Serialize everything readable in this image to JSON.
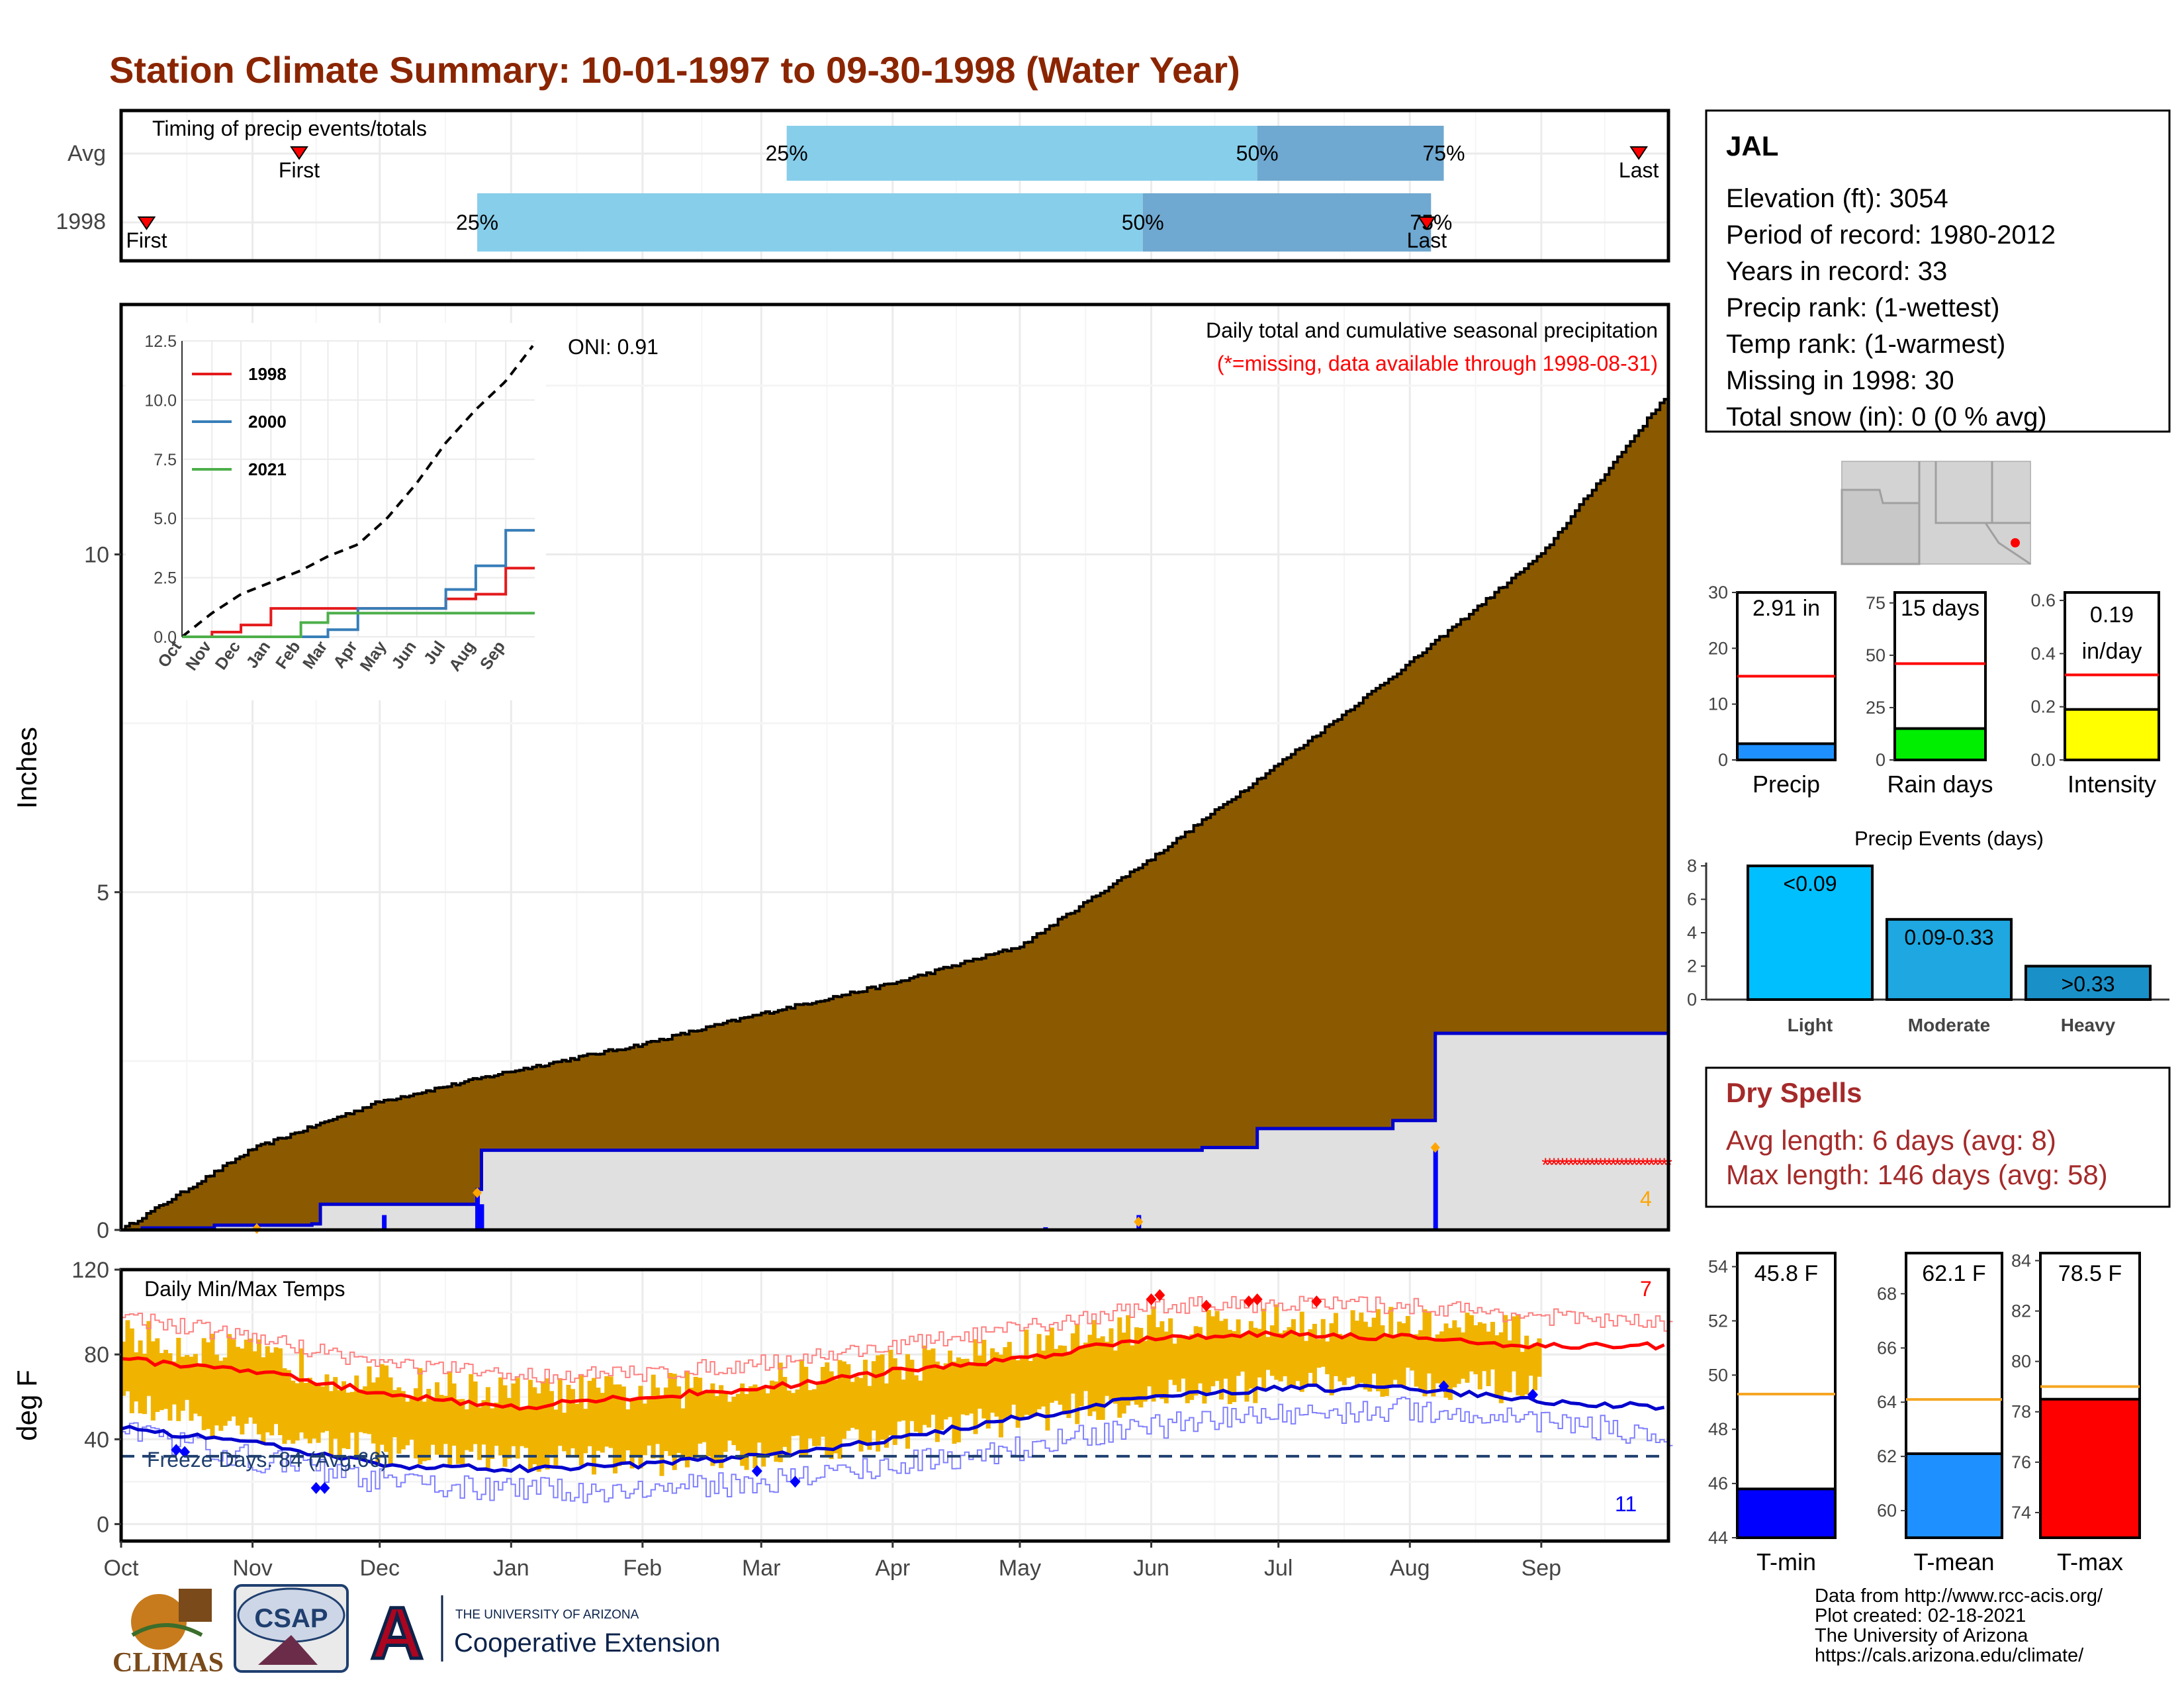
{
  "title": "Station Climate Summary: 10-01-1997 to 09-30-1998 (Water Year)",
  "colors": {
    "title": "#8b2500",
    "cumulative_fill": "#8b5a00",
    "avg_fill": "#e0e0e0",
    "avg_line": "#0000cd",
    "timing_light": "#87ceeb",
    "timing_dark": "#6fa8d0",
    "temp_bar": "#f0b400",
    "tmax_line": "#ff0000",
    "tmin_line": "#0000cd",
    "dry_spells": "#a52a2a"
  },
  "timing": {
    "title": "Timing of precip events/totals",
    "rows": [
      {
        "label": "Avg",
        "first_label": "First",
        "last_label": "Last",
        "first": "Nov 12",
        "p25": "Mar 07",
        "p50": "Jun 26",
        "p75": "Aug 09",
        "last": "Sep 24"
      },
      {
        "label": "1998",
        "first_label": "First",
        "last_label": "Last",
        "first": "Oct 07",
        "p25": "Dec 24",
        "p50": "May 30",
        "p75": "Aug 06",
        "last": "Aug 05"
      }
    ],
    "pct_labels": [
      "25%",
      "50%",
      "75%"
    ]
  },
  "precip_panel": {
    "ylabel": "Inches",
    "title": "Daily total and cumulative seasonal precipitation",
    "subtitle": "(*=missing, data available through 1998-08-31)",
    "oni": "ONI: 0.91",
    "count_label": "4",
    "yticks": [
      "0",
      "5",
      "10"
    ]
  },
  "inset": {
    "yticks": [
      "0.0",
      "2.5",
      "5.0",
      "7.5",
      "10.0",
      "12.5"
    ],
    "xticks": [
      "Oct",
      "Nov",
      "Dec",
      "Jan",
      "Feb",
      "Mar",
      "Apr",
      "May",
      "Jun",
      "Jul",
      "Aug",
      "Sep"
    ],
    "legend": [
      {
        "name": "1998",
        "color": "#e41a1c"
      },
      {
        "name": "2000",
        "color": "#377eb8"
      },
      {
        "name": "2021",
        "color": "#4daf4a"
      }
    ]
  },
  "temp_panel": {
    "ylabel": "deg F",
    "title": "Daily Min/Max Temps",
    "freeze": "Freeze Days: 84 (Avg:66)",
    "high_count": "7",
    "low_count": "11",
    "yticks": [
      "0",
      "40",
      "80",
      "120"
    ],
    "xticks": [
      "Oct",
      "Nov",
      "Dec",
      "Jan",
      "Feb",
      "Mar",
      "Apr",
      "May",
      "Jun",
      "Jul",
      "Aug",
      "Sep"
    ]
  },
  "station": {
    "name": "JAL",
    "lines": [
      "Elevation (ft): 3054",
      "Period of record: 1980-2012",
      "Years in record: 33",
      "Precip rank:  (1-wettest)",
      "Temp rank:  (1-warmest)",
      "Missing in 1998: 30",
      "Total snow (in): 0 (0 % avg)"
    ]
  },
  "mini_bars": [
    {
      "label": "Precip",
      "value_text": "2.91 in",
      "value": 2.91,
      "avg": 15,
      "ymax": 30,
      "yticks": [
        "0",
        "10",
        "20",
        "30"
      ],
      "color": "#1e90ff"
    },
    {
      "label": "Rain days",
      "value_text": "15 days",
      "value": 15,
      "avg": 46,
      "ymax": 80,
      "yticks": [
        "0",
        "25",
        "50",
        "75"
      ],
      "color": "#00ee00"
    },
    {
      "label": "Intensity",
      "value_text": "0.19",
      "value_text2": "in/day",
      "value": 0.19,
      "avg": 0.32,
      "ymax": 0.63,
      "yticks": [
        "0.0",
        "0.2",
        "0.4",
        "0.6"
      ],
      "color": "#ffff00"
    }
  ],
  "events": {
    "title": "Precip Events (days)",
    "yticks": [
      "0",
      "2",
      "4",
      "6",
      "8"
    ],
    "bars": [
      {
        "label": "Light",
        "bin": "<0.09",
        "value": 8,
        "color": "#00bfff"
      },
      {
        "label": "Moderate",
        "bin": "0.09-0.33",
        "value": 4.8,
        "color": "#1ea7e0"
      },
      {
        "label": "Heavy",
        "bin": ">0.33",
        "value": 2,
        "color": "#1a90c8"
      }
    ]
  },
  "dry_spells": {
    "title": "Dry Spells",
    "avg": "Avg length: 6 days (avg: 8)",
    "max": "Max length: 146 days (avg: 58)"
  },
  "temp_bars": [
    {
      "label": "T-min",
      "value_text": "45.8 F",
      "value": 45.8,
      "avg": 49.3,
      "ymin": 44,
      "ymax": 54.5,
      "yticks": [
        "44",
        "46",
        "48",
        "50",
        "52",
        "54"
      ],
      "color": "#0000ff"
    },
    {
      "label": "T-mean",
      "value_text": "62.1 F",
      "value": 62.1,
      "avg": 64.1,
      "ymin": 59,
      "ymax": 69.5,
      "yticks": [
        "60",
        "62",
        "64",
        "66",
        "68"
      ],
      "color": "#1e90ff"
    },
    {
      "label": "T-max",
      "value_text": "78.5 F",
      "value": 78.5,
      "avg": 79,
      "ymin": 73,
      "ymax": 84.3,
      "yticks": [
        "74",
        "76",
        "78",
        "80",
        "82",
        "84"
      ],
      "color": "#ff0000"
    }
  ],
  "logos": {
    "climas": "CLIMAS",
    "csap": "CSAP",
    "ua_small": "THE UNIVERSITY OF ARIZONA",
    "ua_big": "Cooperative Extension",
    "ua_letter": "A"
  },
  "credits": [
    "Data from http://www.rcc-acis.org/",
    "Plot created: 02-18-2021",
    "The University of Arizona",
    "https://cals.arizona.edu/climate/"
  ],
  "chart_data": [
    {
      "type": "area",
      "title": "Daily total and cumulative seasonal precipitation",
      "ylabel": "Inches",
      "x": [
        "Oct",
        "Nov",
        "Dec",
        "Jan",
        "Feb",
        "Mar",
        "Apr",
        "May",
        "Jun",
        "Jul",
        "Aug",
        "Sep",
        "Sep 30"
      ],
      "ylim": [
        0,
        13.7
      ],
      "series": [
        {
          "values": [
            0,
            1.2,
            1.9,
            2.35,
            2.75,
            3.2,
            3.65,
            4.2,
            5.5,
            6.9,
            8.4,
            10.0,
            12.4
          ]
        },
        {
          "values": [
            0,
            0.1,
            0.38,
            1.18,
            1.18,
            1.18,
            1.18,
            1.2,
            1.22,
            1.5,
            1.62,
            2.91,
            2.91
          ]
        }
      ]
    },
    {
      "type": "line",
      "ylim": [
        0,
        12.5
      ],
      "x": [
        "Oct",
        "Nov",
        "Dec",
        "Jan",
        "Feb",
        "Mar",
        "Apr",
        "May",
        "Jun",
        "Jul",
        "Aug",
        "Sep",
        "Sep 30"
      ],
      "series": [
        {
          "values": [
            0,
            1.0,
            1.8,
            2.3,
            2.8,
            3.4,
            3.9,
            5.0,
            6.5,
            8.2,
            9.6,
            10.8,
            12.4
          ]
        },
        {
          "name": "1998",
          "values": [
            0,
            0.2,
            0.5,
            1.2,
            1.2,
            1.2,
            1.2,
            1.2,
            1.2,
            1.6,
            1.8,
            2.9,
            2.9
          ]
        },
        {
          "name": "2000",
          "values": [
            0,
            0,
            0,
            0,
            0,
            0.3,
            1.2,
            1.2,
            1.2,
            2.0,
            3.0,
            4.5,
            4.5
          ]
        },
        {
          "name": "2021",
          "values": [
            0,
            0,
            0,
            0,
            0.6,
            1.0,
            1.0,
            1.0,
            1.0,
            1.0,
            1.0,
            1.0,
            1.0
          ]
        }
      ]
    },
    {
      "type": "line",
      "title": "Daily Min/Max Temps",
      "ylabel": "deg F",
      "ylim": [
        -8,
        120
      ],
      "x": [
        "Oct",
        "Nov",
        "Dec",
        "Jan",
        "Feb",
        "Mar",
        "Apr",
        "May",
        "Jun",
        "Jul",
        "Aug",
        "Sep",
        "Sep 30"
      ],
      "series": [
        {
          "values": [
            88,
            78,
            66,
            60,
            61,
            66,
            74,
            82,
            93,
            94,
            93,
            88,
            84
          ]
        },
        {
          "values": [
            57,
            45,
            34,
            30,
            30,
            34,
            42,
            50,
            60,
            66,
            68,
            63,
            55
          ]
        },
        {
          "values": [
            78,
            72,
            62,
            55,
            60,
            64,
            72,
            78,
            88,
            90,
            88,
            84,
            84
          ]
        },
        {
          "values": [
            45,
            38,
            28,
            26,
            28,
            32,
            40,
            50,
            60,
            64,
            64,
            58,
            55
          ]
        }
      ],
      "hline": 32
    },
    {
      "type": "bar",
      "categories": [
        "Precip"
      ],
      "values": [
        2.91
      ],
      "ylim": [
        0,
        30
      ]
    },
    {
      "type": "bar",
      "categories": [
        "Rain days"
      ],
      "values": [
        15
      ],
      "ylim": [
        0,
        80
      ]
    },
    {
      "type": "bar",
      "categories": [
        "Intensity"
      ],
      "values": [
        0.19
      ],
      "ylim": [
        0,
        0.63
      ]
    },
    {
      "type": "bar",
      "title": "Precip Events (days)",
      "categories": [
        "Light",
        "Moderate",
        "Heavy"
      ],
      "values": [
        8,
        4.8,
        2
      ],
      "ylim": [
        0,
        8.2
      ]
    },
    {
      "type": "bar",
      "categories": [
        "T-min"
      ],
      "values": [
        45.8
      ],
      "ylim": [
        44,
        54.5
      ]
    },
    {
      "type": "bar",
      "categories": [
        "T-mean"
      ],
      "values": [
        62.1
      ],
      "ylim": [
        59,
        69.5
      ]
    },
    {
      "type": "bar",
      "categories": [
        "T-max"
      ],
      "values": [
        78.5
      ],
      "ylim": [
        73,
        84.3
      ]
    }
  ]
}
